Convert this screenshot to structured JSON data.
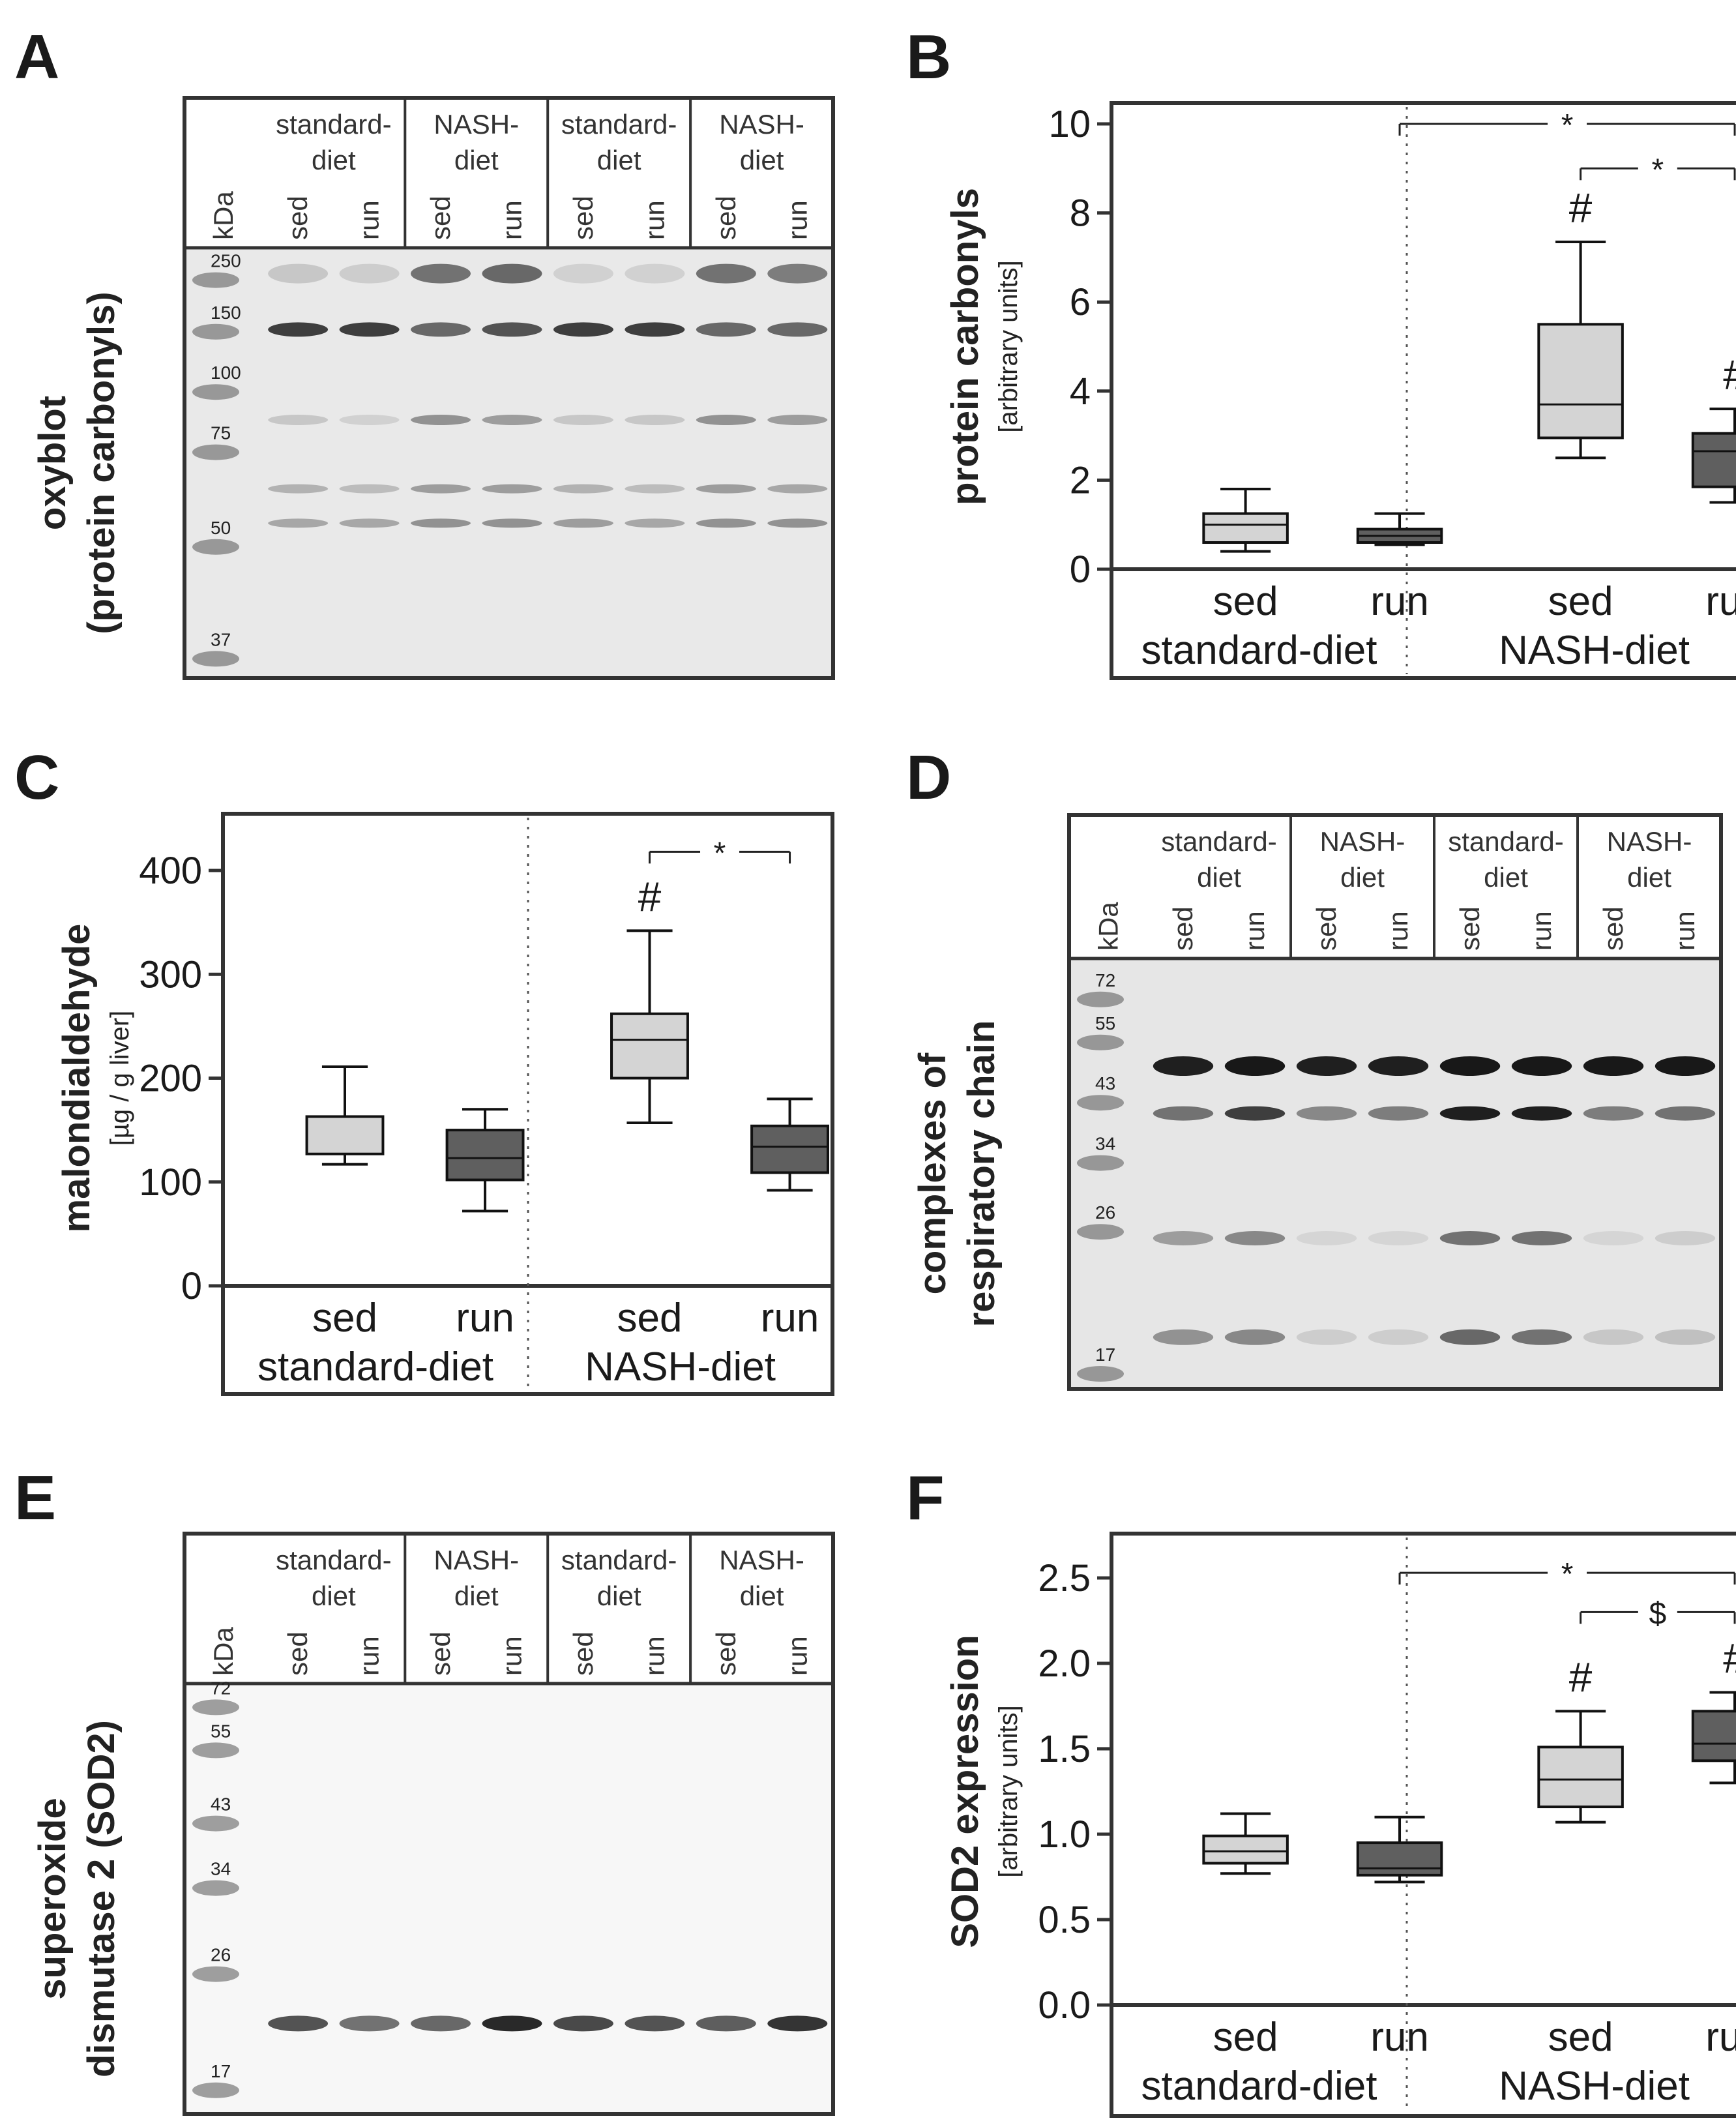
{
  "panel_labels": {
    "A": "A",
    "B": "B",
    "C": "C",
    "D": "D",
    "E": "E",
    "F": "F"
  },
  "blot_headers": {
    "kda": "kDa",
    "groups": [
      "standard-\ndiet",
      "NASH-\ndiet",
      "standard-\ndiet",
      "NASH-\ndiet"
    ],
    "lanes": [
      "sed",
      "run",
      "sed",
      "run",
      "sed",
      "run",
      "sed",
      "run"
    ]
  },
  "blots": {
    "A": {
      "ylabel_lines": [
        "oxyblot",
        "(protein carbonyls)"
      ],
      "markers": [
        "250",
        "150",
        "100",
        "75",
        "50",
        "37"
      ],
      "background": "#e9e9e9"
    },
    "D": {
      "ylabel_lines": [
        "complexes of",
        "respiratory chain"
      ],
      "markers": [
        "72",
        "55",
        "43",
        "34",
        "26",
        "17"
      ],
      "background": "#e6e6e6"
    },
    "E": {
      "ylabel_lines": [
        "superoxide",
        "dismutase 2 (SOD2)"
      ],
      "markers": [
        "72",
        "55",
        "43",
        "34",
        "26",
        "17"
      ],
      "background": "#f7f7f7"
    }
  },
  "colors": {
    "light_box": "#d4d4d4",
    "dark_box": "#5f5f5f",
    "axis": "#333333"
  },
  "chart_data": [
    {
      "id": "B",
      "type": "box",
      "ylabel": "protein carbonyls",
      "yunit": "[arbitrary units]",
      "ylim": [
        0,
        10
      ],
      "yticks": [
        "0",
        "2",
        "4",
        "6",
        "8",
        "10"
      ],
      "tick_values": [
        0,
        2,
        4,
        6,
        8,
        10
      ],
      "categories": [
        "sed",
        "run",
        "sed",
        "run"
      ],
      "groups": [
        "standard-diet",
        "NASH-diet"
      ],
      "boxes": [
        {
          "min": 0.4,
          "q1": 0.6,
          "median": 1.0,
          "q3": 1.25,
          "max": 1.8,
          "shade": "light",
          "mark": ""
        },
        {
          "min": 0.55,
          "q1": 0.6,
          "median": 0.75,
          "q3": 0.9,
          "max": 1.25,
          "shade": "dark",
          "mark": ""
        },
        {
          "min": 2.5,
          "q1": 2.95,
          "median": 3.7,
          "q3": 5.5,
          "max": 7.35,
          "shade": "light",
          "mark": "#"
        },
        {
          "min": 1.5,
          "q1": 1.85,
          "median": 2.65,
          "q3": 3.05,
          "max": 3.6,
          "shade": "dark",
          "mark": "#"
        }
      ],
      "sig_brackets": [
        {
          "from": 1,
          "to": 3,
          "label": "*",
          "level": 10.0
        },
        {
          "from": 2,
          "to": 3,
          "label": "*",
          "level": 9.0
        }
      ]
    },
    {
      "id": "C",
      "type": "box",
      "ylabel": "malondialdehyde",
      "yunit": "[µg / g liver]",
      "ylim": [
        0,
        400
      ],
      "yticks": [
        "0",
        "100",
        "200",
        "300",
        "400"
      ],
      "tick_values": [
        0,
        100,
        200,
        300,
        400
      ],
      "categories": [
        "sed",
        "run",
        "sed",
        "run"
      ],
      "groups": [
        "standard-diet",
        "NASH-diet"
      ],
      "boxes": [
        {
          "min": 117,
          "q1": 127,
          "median": 127,
          "q3": 163,
          "max": 211,
          "shade": "light",
          "mark": ""
        },
        {
          "min": 72,
          "q1": 102,
          "median": 123,
          "q3": 150,
          "max": 170,
          "shade": "dark",
          "mark": ""
        },
        {
          "min": 157,
          "q1": 200,
          "median": 237,
          "q3": 262,
          "max": 342,
          "shade": "light",
          "mark": "#"
        },
        {
          "min": 92,
          "q1": 109,
          "median": 134,
          "q3": 154,
          "max": 180,
          "shade": "dark",
          "mark": ""
        }
      ],
      "sig_brackets": [
        {
          "from": 2,
          "to": 3,
          "label": "*",
          "level": 418
        }
      ]
    },
    {
      "id": "F",
      "type": "box",
      "ylabel": "SOD2 expression",
      "yunit": "[arbitrary units]",
      "ylim": [
        0,
        2.5
      ],
      "yticks": [
        "0.0",
        "0.5",
        "1.0",
        "1.5",
        "2.0",
        "2.5"
      ],
      "tick_values": [
        0,
        0.5,
        1.0,
        1.5,
        2.0,
        2.5
      ],
      "categories": [
        "sed",
        "run",
        "sed",
        "run"
      ],
      "groups": [
        "standard-diet",
        "NASH-diet"
      ],
      "boxes": [
        {
          "min": 0.77,
          "q1": 0.83,
          "median": 0.9,
          "q3": 0.99,
          "max": 1.12,
          "shade": "light",
          "mark": ""
        },
        {
          "min": 0.72,
          "q1": 0.76,
          "median": 0.8,
          "q3": 0.95,
          "max": 1.1,
          "shade": "dark",
          "mark": ""
        },
        {
          "min": 1.07,
          "q1": 1.16,
          "median": 1.32,
          "q3": 1.51,
          "max": 1.72,
          "shade": "light",
          "mark": "#"
        },
        {
          "min": 1.3,
          "q1": 1.43,
          "median": 1.53,
          "q3": 1.72,
          "max": 1.83,
          "shade": "dark",
          "mark": "#"
        }
      ],
      "sig_brackets": [
        {
          "from": 1,
          "to": 3,
          "label": "*",
          "level": 2.53
        },
        {
          "from": 2,
          "to": 3,
          "label": "$",
          "level": 2.3
        }
      ]
    }
  ]
}
